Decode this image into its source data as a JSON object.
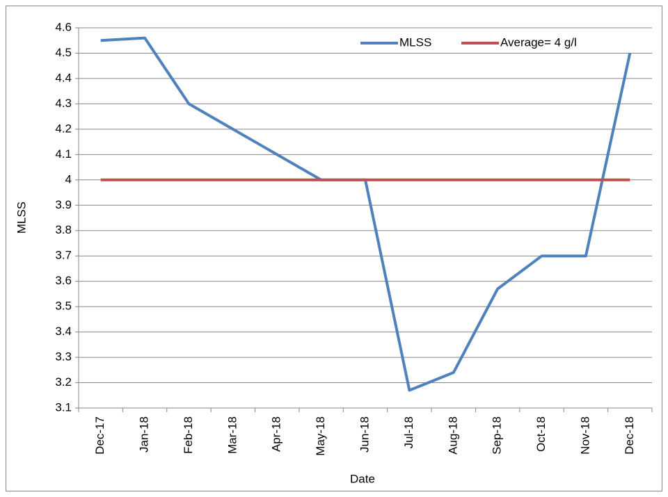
{
  "chart_data": {
    "type": "line",
    "x_label": "Date",
    "y_label": "MLSS",
    "categories": [
      "Dec-17",
      "Jan-18",
      "Feb-18",
      "Mar-18",
      "Apr-18",
      "May-18",
      "Jun-18",
      "Jul-18",
      "Aug-18",
      "Sep-18",
      "Oct-18",
      "Nov-18",
      "Dec-18"
    ],
    "series": [
      {
        "name": "MLSS",
        "color": "#4f81bd",
        "values": [
          4.55,
          4.56,
          4.3,
          4.2,
          4.1,
          4.0,
          4.0,
          3.17,
          3.24,
          3.57,
          3.7,
          3.7,
          4.5
        ]
      },
      {
        "name": "Average= 4 g/l",
        "color": "#c0504d",
        "values": [
          4,
          4,
          4,
          4,
          4,
          4,
          4,
          4,
          4,
          4,
          4,
          4,
          4
        ]
      }
    ],
    "ylim": [
      3.1,
      4.6
    ],
    "yticks": [
      3.1,
      3.2,
      3.3,
      3.4,
      3.5,
      3.6,
      3.7,
      3.8,
      3.9,
      4,
      4.1,
      4.2,
      4.3,
      4.4,
      4.5,
      4.6
    ],
    "grid": true,
    "legend": "top-right"
  }
}
